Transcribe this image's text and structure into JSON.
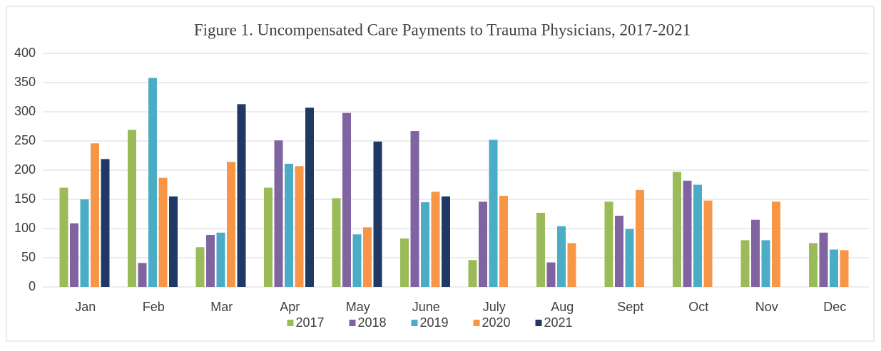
{
  "chart_data": {
    "type": "bar",
    "title": "Figure 1. Uncompensated Care Payments to Trauma Physicians, 2017-2021",
    "categories": [
      "Jan",
      "Feb",
      "Mar",
      "Apr",
      "May",
      "June",
      "July",
      "Aug",
      "Sept",
      "Oct",
      "Nov",
      "Dec"
    ],
    "series": [
      {
        "name": "2017",
        "color": "#9bbb59",
        "values": [
          170,
          269,
          68,
          170,
          152,
          83,
          46,
          127,
          146,
          197,
          80,
          75
        ]
      },
      {
        "name": "2018",
        "color": "#8064a2",
        "values": [
          109,
          41,
          89,
          251,
          298,
          267,
          146,
          42,
          122,
          182,
          115,
          93
        ]
      },
      {
        "name": "2019",
        "color": "#4bacc6",
        "values": [
          150,
          358,
          93,
          211,
          90,
          145,
          252,
          104,
          99,
          175,
          80,
          64
        ]
      },
      {
        "name": "2020",
        "color": "#f79646",
        "values": [
          246,
          187,
          214,
          207,
          102,
          163,
          156,
          75,
          166,
          148,
          146,
          63
        ]
      },
      {
        "name": "2021",
        "color": "#1f3864",
        "values": [
          219,
          155,
          313,
          307,
          249,
          155,
          null,
          null,
          null,
          null,
          null,
          null
        ]
      }
    ],
    "ylim": [
      0,
      400
    ],
    "yticks": [
      0,
      50,
      100,
      150,
      200,
      250,
      300,
      350,
      400
    ],
    "grid": true,
    "legend": "bottom"
  }
}
